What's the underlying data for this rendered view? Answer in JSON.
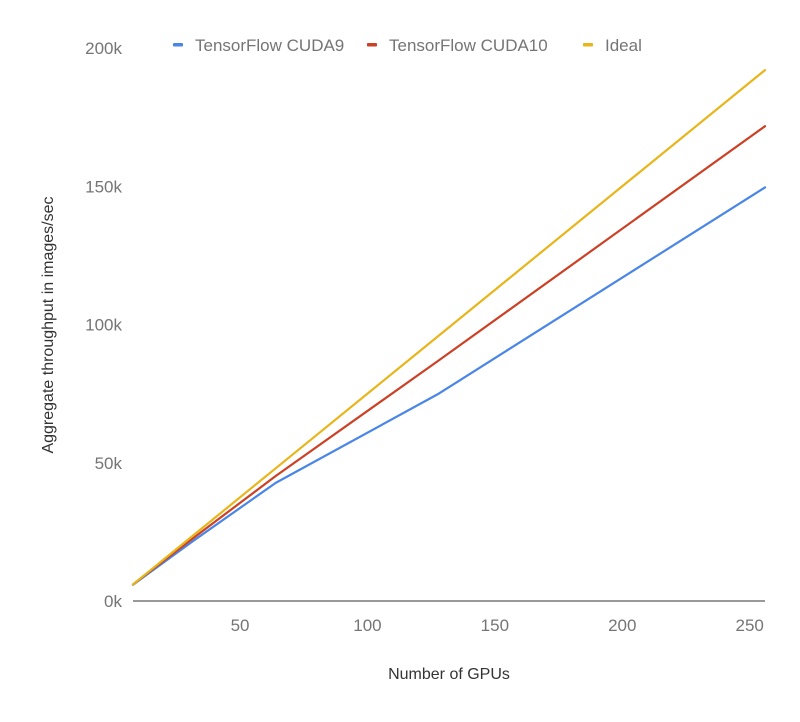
{
  "chart_data": {
    "type": "line",
    "title": "",
    "xlabel": "Number of GPUs",
    "ylabel": "Aggregate throughput in images/sec",
    "x": [
      8,
      16,
      32,
      64,
      128,
      256
    ],
    "xlim": [
      8,
      256
    ],
    "ylim": [
      0,
      200000
    ],
    "x_ticks": [
      50,
      100,
      150,
      200,
      250
    ],
    "x_tick_labels": [
      "50",
      "100",
      "150",
      "200",
      "250"
    ],
    "y_ticks": [
      0,
      50000,
      100000,
      150000,
      200000
    ],
    "y_tick_labels": [
      "0k",
      "50k",
      "100k",
      "150k",
      "200k"
    ],
    "grid": false,
    "legend_position": "top",
    "series": [
      {
        "name": "TensorFlow CUDA9",
        "color": "#4a86e8",
        "values": [
          5900,
          11300,
          22000,
          42700,
          75000,
          149600
        ]
      },
      {
        "name": "TensorFlow CUDA10",
        "color": "#cc4125",
        "values": [
          5950,
          11700,
          23000,
          45200,
          87000,
          171700
        ]
      },
      {
        "name": "Ideal",
        "color": "#e8b51b",
        "values": [
          6000,
          12000,
          24000,
          48000,
          96000,
          192000
        ]
      }
    ]
  }
}
